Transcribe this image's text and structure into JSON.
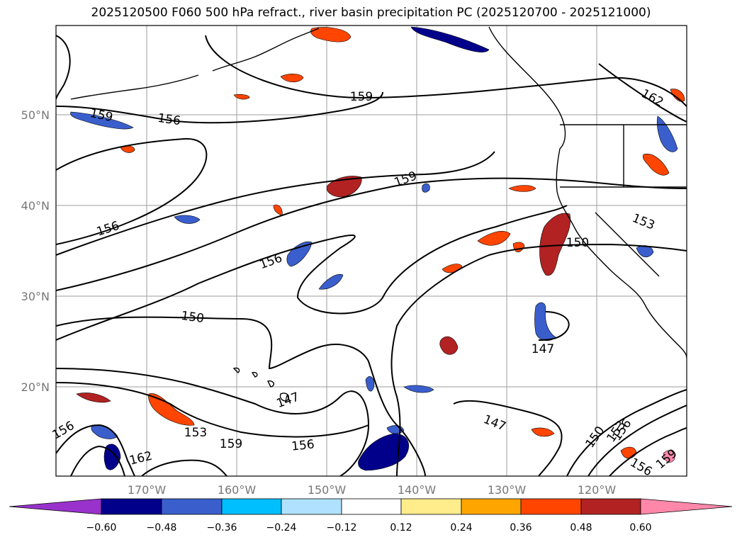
{
  "title": "2025120500 F060 500 hPa refract., river basin precipitation PC (2025120700 - 2025121000)",
  "lat_labels": [
    "50°N",
    "40°N",
    "30°N",
    "20°N"
  ],
  "lon_labels": [
    "170°W",
    "160°W",
    "150°W",
    "140°W",
    "130°W",
    "120°W"
  ],
  "contour_labels": [
    "159",
    "156",
    "159",
    "159",
    "162",
    "156",
    "156",
    "153",
    "150",
    "150",
    "147",
    "147",
    "147",
    "153",
    "156",
    "159",
    "162",
    "156",
    "150",
    "153",
    "156",
    "156",
    "159"
  ],
  "colorbar": {
    "colors": [
      "#9932cc",
      "#00008b",
      "#3a5fcd",
      "#00bfff",
      "#b0e2ff",
      "#ffffff",
      "#ffec8b",
      "#ffa500",
      "#ff4500",
      "#b22222",
      "#ff88aa"
    ],
    "tick_labels": [
      "−0.60",
      "−0.48",
      "−0.36",
      "−0.24",
      "−0.12",
      "0.12",
      "0.24",
      "0.36",
      "0.48",
      "0.60"
    ]
  },
  "colors": {
    "grid": "#9e9e9e",
    "contour": "#000000",
    "coast": "#000000"
  }
}
